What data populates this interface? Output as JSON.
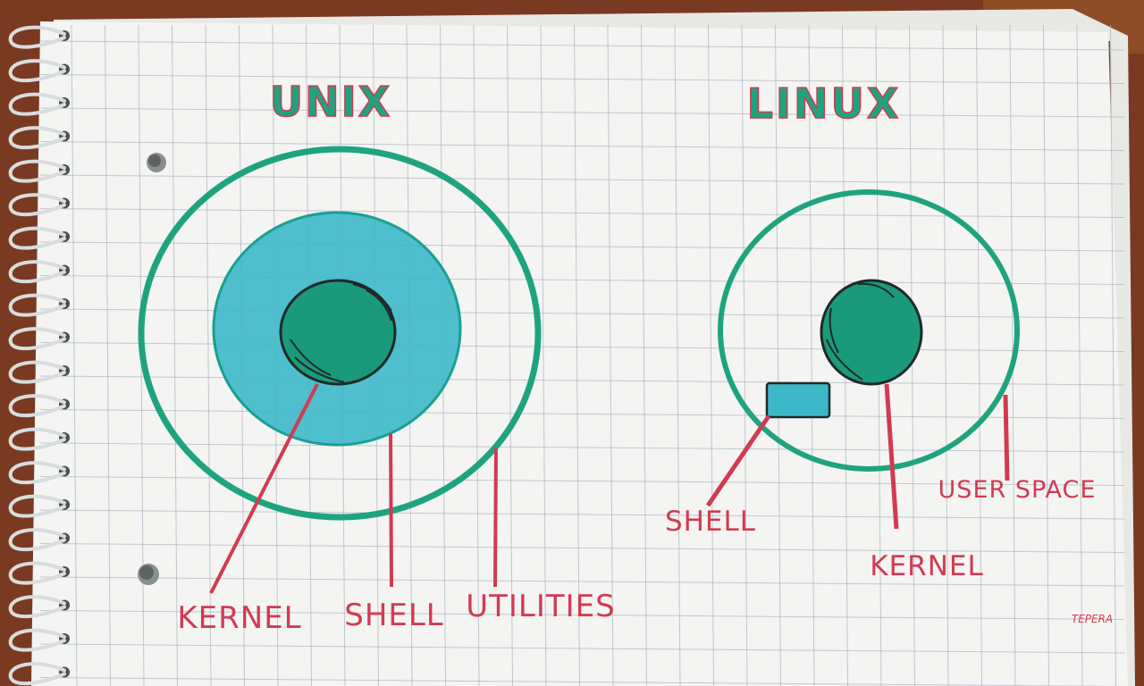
{
  "colors": {
    "background": "#7a3a22",
    "paper": "#f4f4f2",
    "grid": "#a9b5c2",
    "ring": "#1fa37f",
    "inner_fill": "#3db8c9",
    "kernel_fill": "#1a9a7a",
    "label": "#d23a52",
    "outline": "#1e2a2a"
  },
  "unix": {
    "title": "UNIX",
    "labels": {
      "kernel": "KERNEL",
      "shell": "SHELL",
      "utilities": "UTILITIES"
    }
  },
  "linux": {
    "title": "LINUX",
    "labels": {
      "shell": "SHELL",
      "kernel": "KERNEL",
      "user_space": "USER SPACE"
    }
  },
  "signature": "TEPERA"
}
